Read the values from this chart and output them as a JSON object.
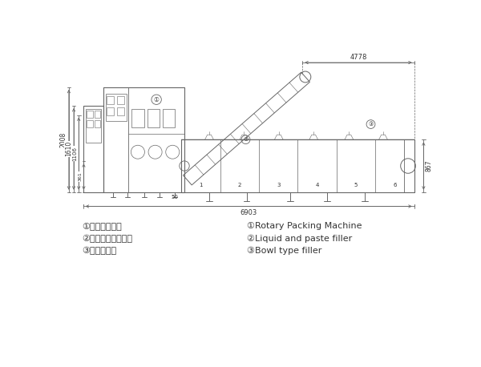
{
  "bg_color": "#ffffff",
  "line_color": "#666666",
  "text_color": "#333333",
  "figure_width": 6.0,
  "figure_height": 4.58,
  "legend_chinese": [
    "①给袋式包装机",
    "②液体、酱体灌装机",
    "③碎状输送机"
  ],
  "legend_english": [
    "①Rotary Packing Machine",
    "②Liquid and paste filler",
    "③Bowl type filler"
  ],
  "dim_4778": "4778",
  "dim_6903": "6903",
  "dim_2008": "2008",
  "dim_1610": "1610",
  "dim_1106": "1106",
  "dim_361": "361",
  "dim_50": "50",
  "dim_867": "867"
}
